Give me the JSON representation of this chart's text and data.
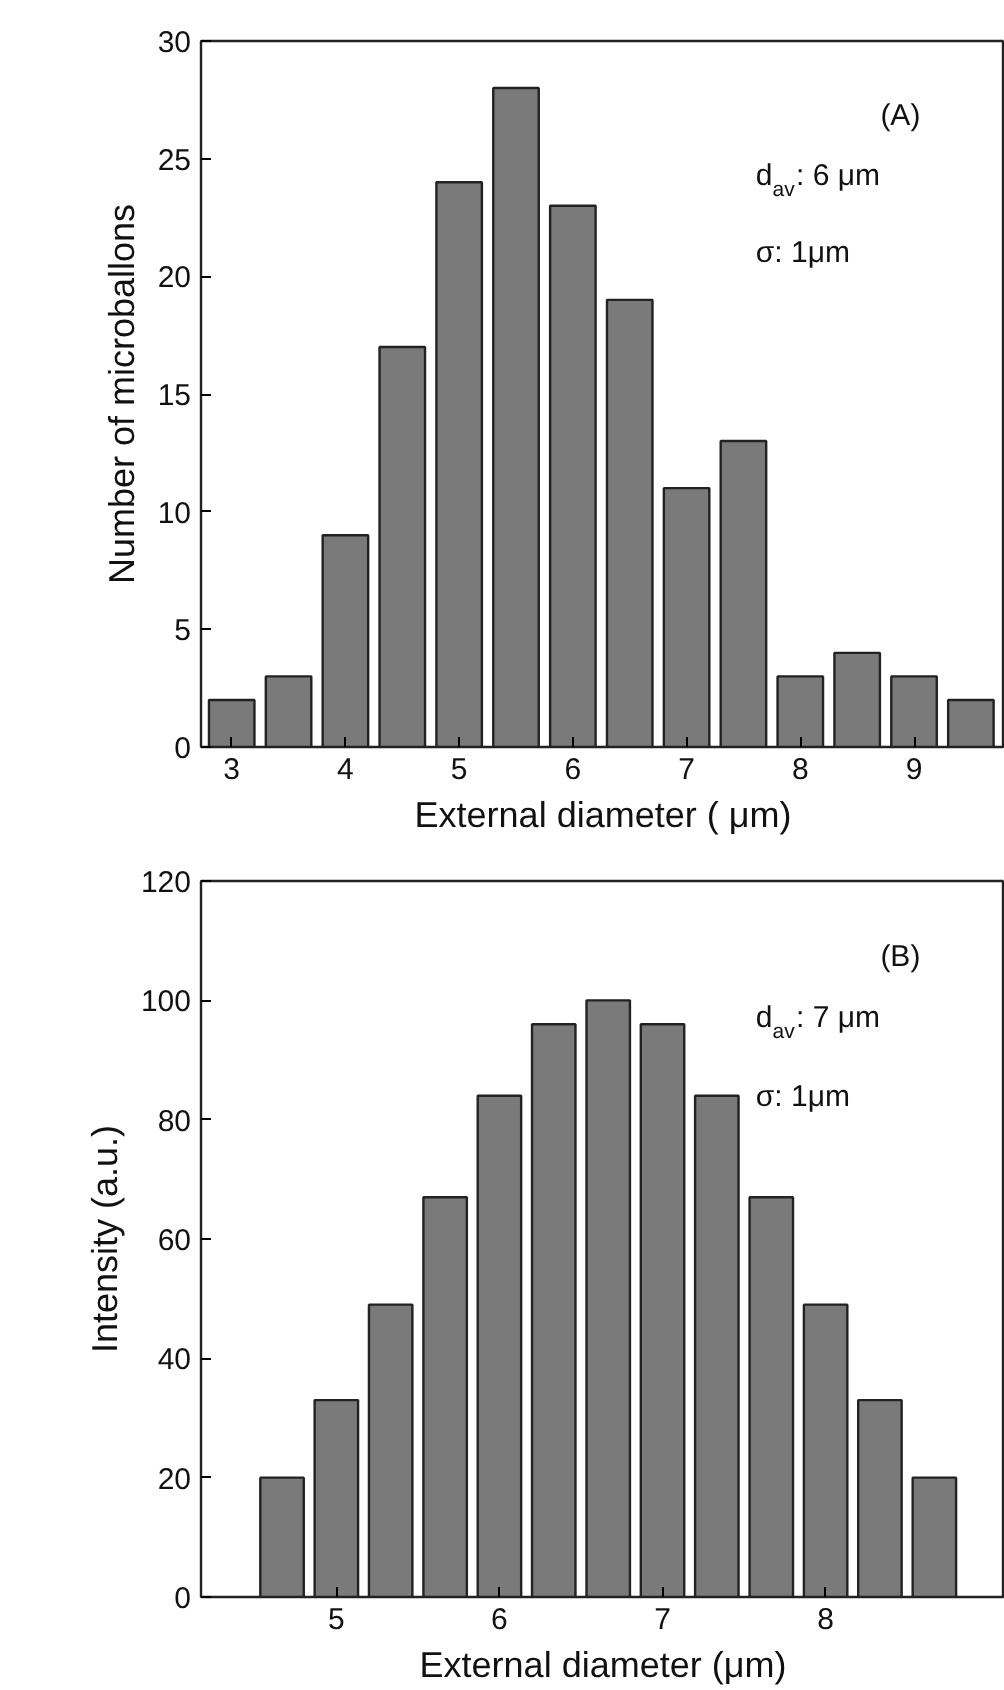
{
  "chart_data": [
    {
      "type": "bar",
      "color": "#7a7a7a",
      "x": [
        3,
        3.5,
        4,
        4.5,
        5,
        5.5,
        6,
        6.5,
        7,
        7.5,
        8,
        8.5,
        9,
        9.5
      ],
      "values": [
        2,
        3,
        9,
        17,
        24,
        28,
        23,
        19,
        11,
        13,
        3,
        4,
        3,
        2
      ],
      "xlim": [
        2.73,
        9.8
      ],
      "ylim": [
        0,
        30
      ],
      "xticks": [
        3,
        4,
        5,
        6,
        7,
        8,
        9
      ],
      "yticks": [
        0,
        5,
        10,
        15,
        20,
        25,
        30
      ],
      "xlabel": "External diameter ( μm)",
      "ylabel": "Number of microballons",
      "annotations": [
        "(A)",
        "d$_{av}$: 6 μm",
        "σ: 1μm"
      ]
    },
    {
      "type": "bar",
      "color": "#7a7a7a",
      "x": [
        4.667,
        5,
        5.333,
        5.667,
        6,
        6.333,
        6.667,
        7,
        7.333,
        7.667,
        8,
        8.333,
        8.667
      ],
      "values": [
        20,
        33,
        49,
        67,
        84,
        96,
        100,
        96,
        84,
        67,
        49,
        33,
        20
      ],
      "xlim": [
        4.17,
        9.1
      ],
      "ylim": [
        0,
        120
      ],
      "xticks": [
        5,
        6,
        7,
        8
      ],
      "yticks": [
        0,
        20,
        40,
        60,
        80,
        100,
        120
      ],
      "xlabel": "External diameter (μm)",
      "ylabel": "Intensity (a.u.)",
      "annotations": [
        "(B)",
        "d$_{av}$: 7 μm",
        "σ: 1μm"
      ]
    }
  ]
}
